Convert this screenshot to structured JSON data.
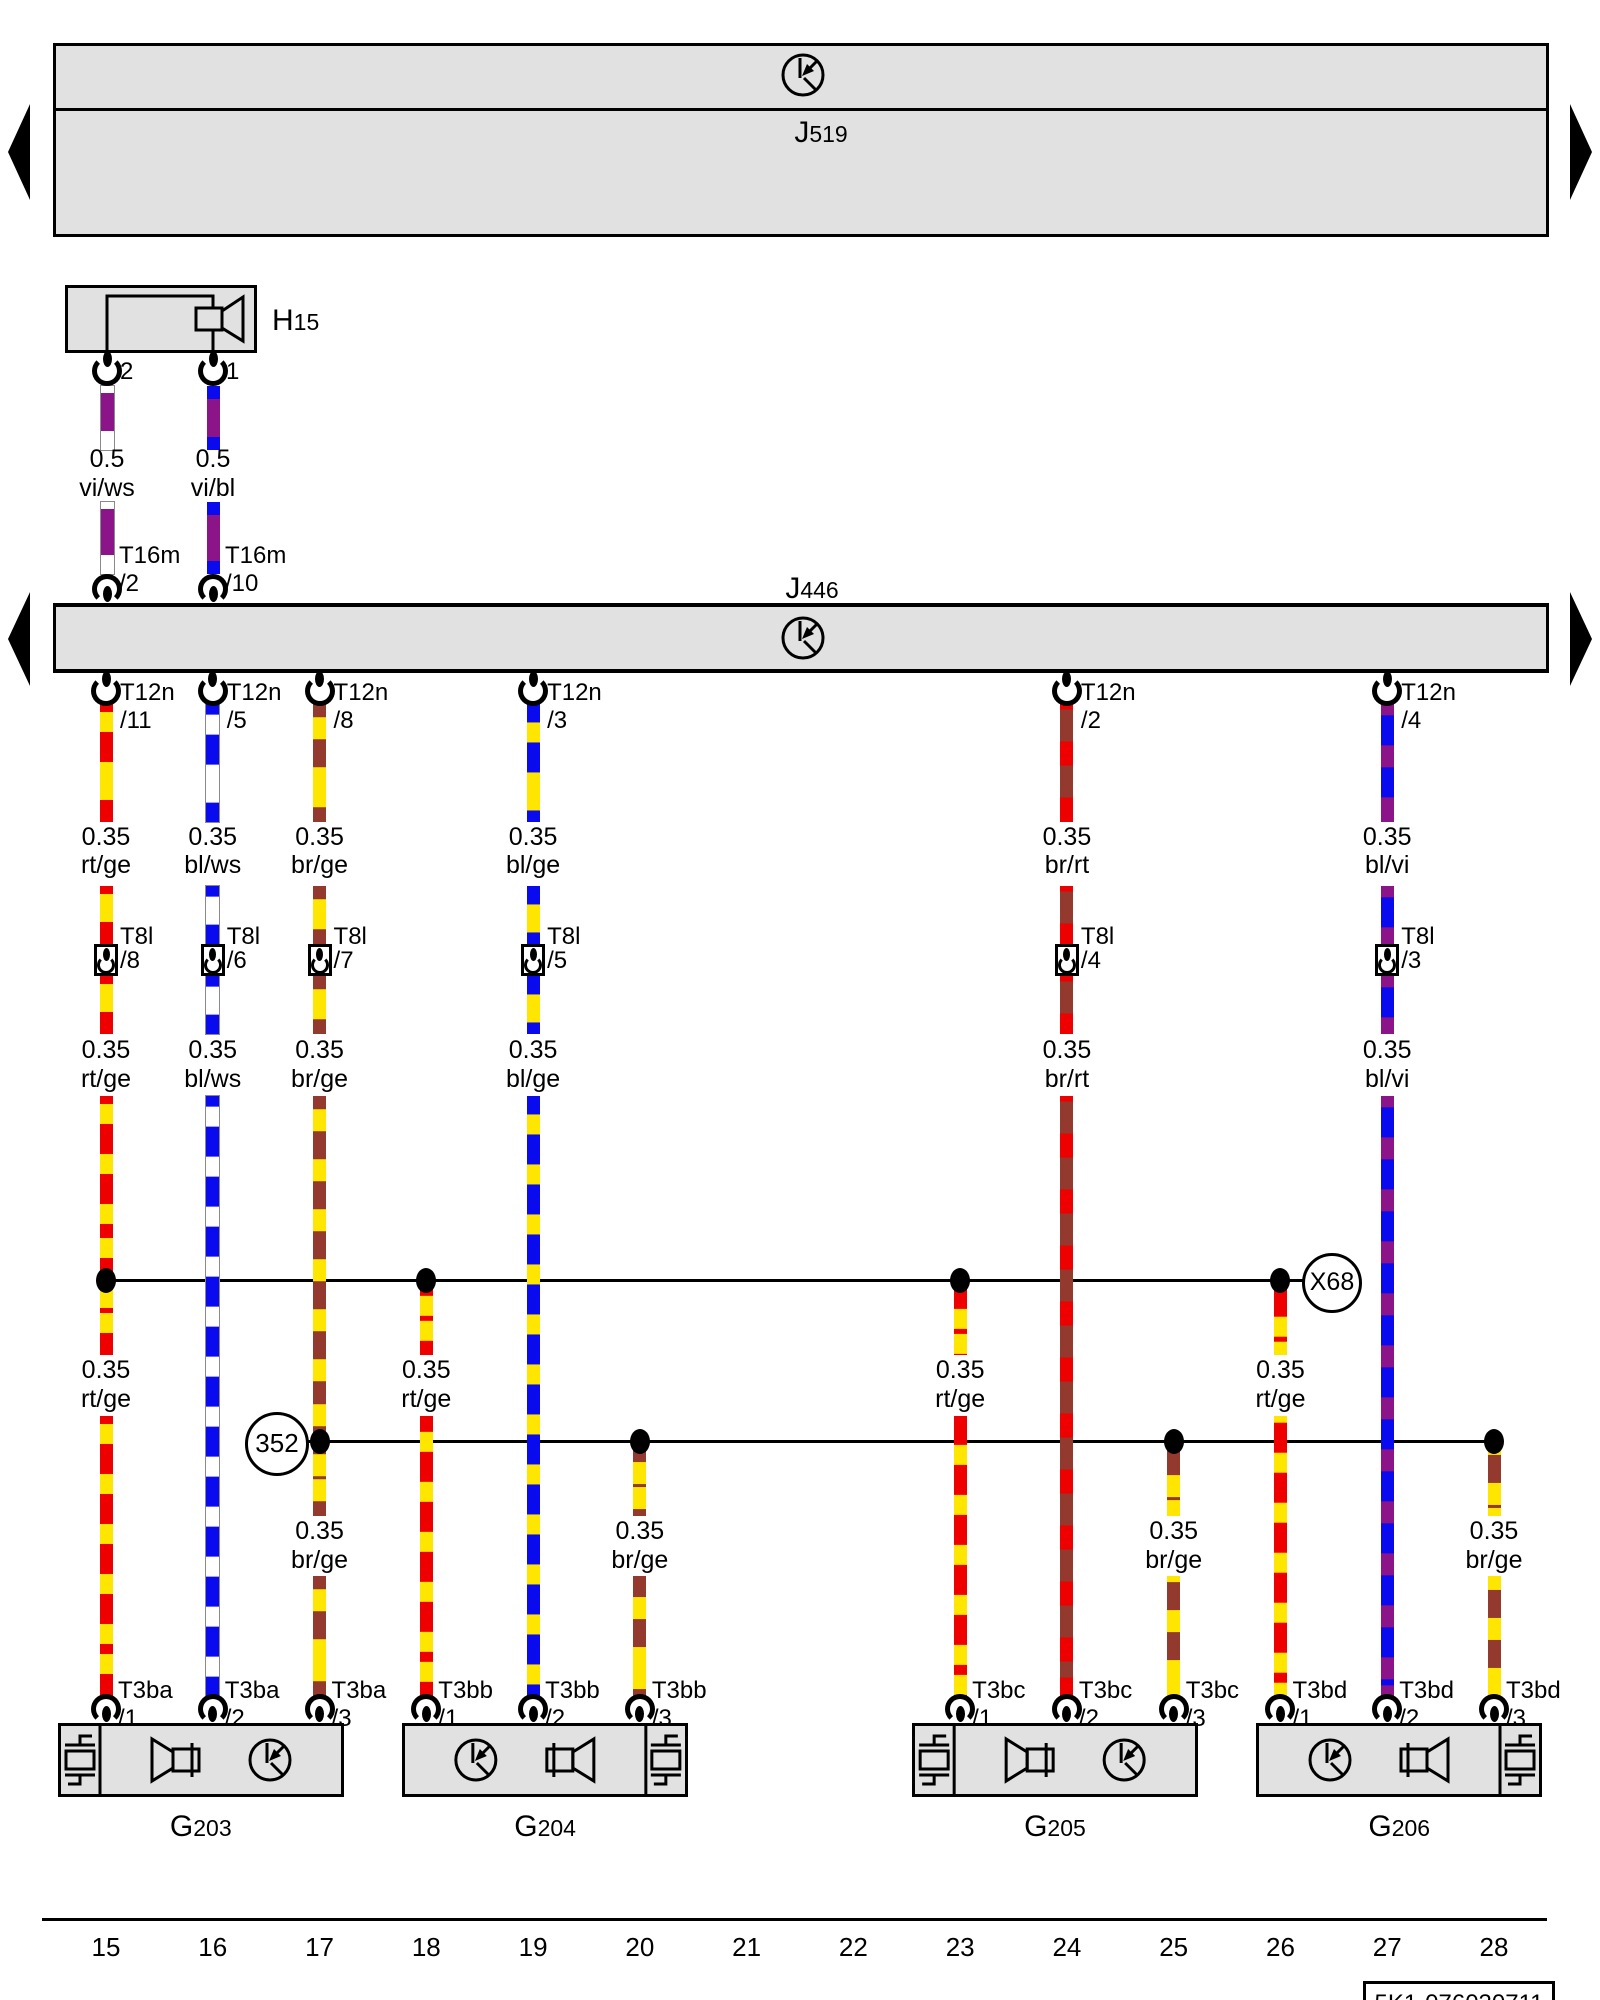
{
  "diagram": {
    "ref_code": "5K1-076030711",
    "grid_numbers": [
      "15",
      "16",
      "17",
      "18",
      "19",
      "20",
      "21",
      "22",
      "23",
      "24",
      "25",
      "26",
      "27",
      "28"
    ]
  },
  "colors": {
    "red": "#ee0000",
    "yellow": "#ffe600",
    "blue": "#0a0aee",
    "white": "#ffffff",
    "brown": "#93392e",
    "violet": "#8a1488",
    "panel_gray": "#e1e1e1",
    "line_black": "#000000"
  },
  "wire_patterns": {
    "rt/ge": {
      "base": "red",
      "stripe": "yellow",
      "base_len": 30,
      "stripe_len": 20
    },
    "bl/ws": {
      "base": "blue",
      "stripe": "white",
      "base_len": 30,
      "stripe_len": 20
    },
    "br/ge": {
      "base": "brown",
      "stripe": "yellow",
      "base_len": 28,
      "stripe_len": 22
    },
    "bl/ge": {
      "base": "blue",
      "stripe": "yellow",
      "base_len": 30,
      "stripe_len": 20
    },
    "br/rt": {
      "base": "brown",
      "stripe": "red",
      "base_len": 32,
      "stripe_len": 24
    },
    "bl/vi": {
      "base": "blue",
      "stripe": "violet",
      "base_len": 30,
      "stripe_len": 22
    },
    "vi/ws": {
      "base": "white",
      "stripe": "violet",
      "base_len": 26,
      "stripe_len": 30
    },
    "vi/bl": {
      "base": "blue",
      "stripe": "violet",
      "base_len": 26,
      "stripe_len": 28
    }
  },
  "modules": {
    "j519": {
      "id": "J519",
      "letter": "J",
      "number": "519",
      "icon": "k-bus-icon"
    },
    "j446": {
      "id": "J446",
      "letter": "J",
      "number": "446",
      "icon": "k-bus-icon"
    },
    "h15": {
      "id": "H15",
      "letter": "H",
      "number": "15",
      "icon": "speaker-icon",
      "pins": [
        {
          "pin": "2",
          "gauge": "0.5",
          "wire_color": "vi/ws",
          "connector": "T16m",
          "connector_pin": "/2"
        },
        {
          "pin": "1",
          "gauge": "0.5",
          "wire_color": "vi/bl",
          "connector": "T16m",
          "connector_pin": "/10"
        }
      ]
    }
  },
  "connector_names": {
    "t12n": "T12n",
    "t8l": "T8l",
    "t16m": "T16m"
  },
  "junctions": [
    {
      "id": "X68",
      "row": "upper"
    },
    {
      "id": "352",
      "row": "lower"
    }
  ],
  "speakers": [
    {
      "letter": "G",
      "number": "203",
      "type": "left",
      "icons": [
        "crystal-icon",
        "speaker-icon",
        "k-bus-icon"
      ]
    },
    {
      "letter": "G",
      "number": "204",
      "type": "right",
      "icons": [
        "k-bus-icon",
        "speaker-icon",
        "crystal-icon"
      ]
    },
    {
      "letter": "G",
      "number": "205",
      "type": "left",
      "icons": [
        "crystal-icon",
        "speaker-icon",
        "k-bus-icon"
      ]
    },
    {
      "letter": "G",
      "number": "206",
      "type": "right",
      "icons": [
        "k-bus-icon",
        "speaker-icon",
        "crystal-icon"
      ]
    }
  ],
  "columns": [
    {
      "col": 15,
      "type": "main",
      "t12n_pin": "/11",
      "gauge": "0.35",
      "color": "rt/ge",
      "t8l_pin": "/8",
      "junction": "X68",
      "t3": "T3ba",
      "t3_pin": "/1",
      "speaker": "G203"
    },
    {
      "col": 16,
      "type": "main",
      "t12n_pin": "/5",
      "gauge": "0.35",
      "color": "bl/ws",
      "t8l_pin": "/6",
      "t3": "T3ba",
      "t3_pin": "/2",
      "speaker": "G203"
    },
    {
      "col": 17,
      "type": "main",
      "t12n_pin": "/8",
      "gauge": "0.35",
      "color": "br/ge",
      "t8l_pin": "/7",
      "junction": "352",
      "t3": "T3ba",
      "t3_pin": "/3",
      "speaker": "G203"
    },
    {
      "col": 18,
      "type": "branch",
      "from": "X68",
      "gauge": "0.35",
      "color": "rt/ge",
      "t3": "T3bb",
      "t3_pin": "/1",
      "speaker": "G204"
    },
    {
      "col": 19,
      "type": "main",
      "t12n_pin": "/3",
      "gauge": "0.35",
      "color": "bl/ge",
      "t8l_pin": "/5",
      "t3": "T3bb",
      "t3_pin": "/2",
      "speaker": "G204"
    },
    {
      "col": 20,
      "type": "branch",
      "from": "352",
      "gauge": "0.35",
      "color": "br/ge",
      "t3": "T3bb",
      "t3_pin": "/3",
      "speaker": "G204"
    },
    {
      "col": 23,
      "type": "branch",
      "from": "X68",
      "gauge": "0.35",
      "color": "rt/ge",
      "t3": "T3bc",
      "t3_pin": "/1",
      "speaker": "G205"
    },
    {
      "col": 24,
      "type": "main",
      "t12n_pin": "/2",
      "gauge": "0.35",
      "color": "br/rt",
      "t8l_pin": "/4",
      "t3": "T3bc",
      "t3_pin": "/2",
      "speaker": "G205"
    },
    {
      "col": 25,
      "type": "branch",
      "from": "352",
      "gauge": "0.35",
      "color": "br/ge",
      "t3": "T3bc",
      "t3_pin": "/3",
      "speaker": "G205"
    },
    {
      "col": 26,
      "type": "branch",
      "from": "X68",
      "gauge": "0.35",
      "color": "rt/ge",
      "t3": "T3bd",
      "t3_pin": "/1",
      "speaker": "G206"
    },
    {
      "col": 27,
      "type": "main",
      "t12n_pin": "/4",
      "gauge": "0.35",
      "color": "bl/vi",
      "t8l_pin": "/3",
      "t3": "T3bd",
      "t3_pin": "/2",
      "speaker": "G206"
    },
    {
      "col": 28,
      "type": "branch",
      "from": "352",
      "gauge": "0.35",
      "color": "br/ge",
      "t3": "T3bd",
      "t3_pin": "/3",
      "speaker": "G206"
    }
  ]
}
